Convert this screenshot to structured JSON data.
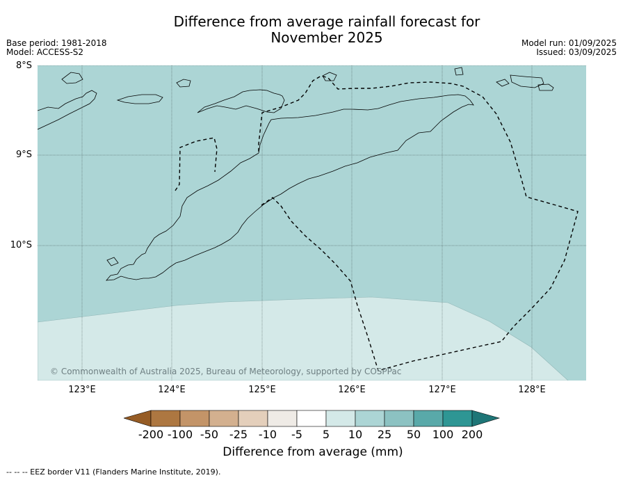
{
  "header": {
    "title_line1": "Difference from average rainfall forecast for",
    "title_line2": "November 2025",
    "base_period": "Base period: 1981-2018",
    "model": "Model: ACCESS-S2",
    "model_run": "Model run: 01/09/2025",
    "issued": "Issued: 03/09/2025"
  },
  "map": {
    "lat_labels": [
      "8°S",
      "9°S",
      "10°S"
    ],
    "lon_labels": [
      "123°E",
      "124°E",
      "125°E",
      "126°E",
      "127°E",
      "128°E"
    ],
    "copyright": "© Commonwealth of Australia 2025, Bureau of Meteorology, supported by COSPPac",
    "ocean_color": "#acd5d5",
    "south_band_color": "#d4e9e8"
  },
  "colorbar": {
    "tick_labels": [
      "-200",
      "-100",
      "-50",
      "-25",
      "-10",
      "-5",
      "5",
      "10",
      "25",
      "50",
      "100",
      "200"
    ],
    "colors": [
      "#965c25",
      "#ad7741",
      "#c39468",
      "#d3b08f",
      "#e4cfbb",
      "#efebe6",
      "#ffffff",
      "#d4e9e8",
      "#acd5d5",
      "#8cc2c2",
      "#59a9a9",
      "#2e9694",
      "#1e7677"
    ],
    "title": "Difference from average (mm)"
  },
  "footer": {
    "eez_note": "--  --  -- EEZ border V11 (Flanders Marine Institute, 2019)."
  }
}
